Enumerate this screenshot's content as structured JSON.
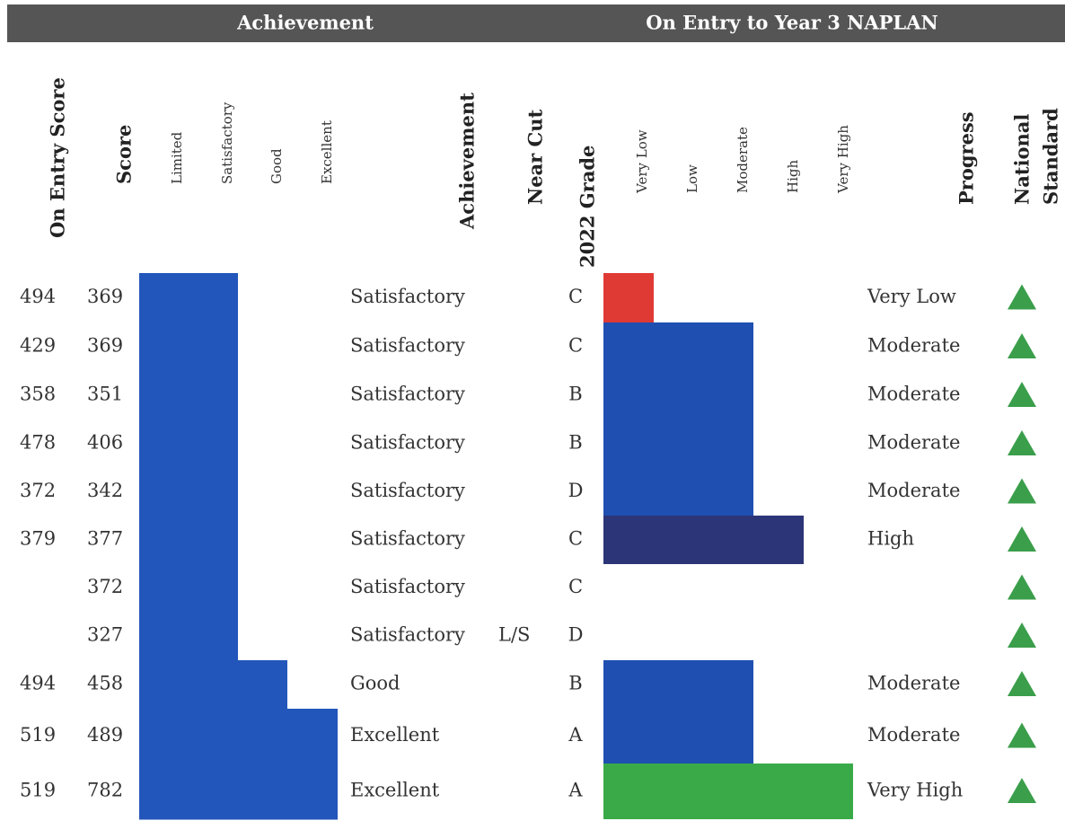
{
  "header": {
    "achievement": "Achievement",
    "naplan": "On Entry to Year 3 NAPLAN"
  },
  "columns": {
    "entry_score": "On Entry Score",
    "score": "Score",
    "achievement_levels": [
      "Limited",
      "Satisfactory",
      "Good",
      "Excellent"
    ],
    "achievement": "Achievement",
    "near_cut": "Near Cut",
    "grade": "2022 Grade",
    "progress_levels": [
      "Very Low",
      "Low",
      "Moderate",
      "High",
      "Very High"
    ],
    "progress": "Progress",
    "national_standard": {
      "line1": "National",
      "line2": "Standard"
    }
  },
  "table": {
    "rows": [
      {
        "entry_score": "494",
        "score": "369",
        "achievement": "Satisfactory",
        "near_cut": null,
        "grade": "C",
        "progress": "Very Low"
      },
      {
        "entry_score": "429",
        "score": "369",
        "achievement": "Satisfactory",
        "near_cut": null,
        "grade": "C",
        "progress": "Moderate"
      },
      {
        "entry_score": "358",
        "score": "351",
        "achievement": "Satisfactory",
        "near_cut": null,
        "grade": "B",
        "progress": "Moderate"
      },
      {
        "entry_score": "478",
        "score": "406",
        "achievement": "Satisfactory",
        "near_cut": null,
        "grade": "B",
        "progress": "Moderate"
      },
      {
        "entry_score": "372",
        "score": "342",
        "achievement": "Satisfactory",
        "near_cut": null,
        "grade": "D",
        "progress": "Moderate"
      },
      {
        "entry_score": "379",
        "score": "377",
        "achievement": "Satisfactory",
        "near_cut": null,
        "grade": "C",
        "progress": "High"
      },
      {
        "entry_score": null,
        "score": "372",
        "achievement": "Satisfactory",
        "near_cut": null,
        "grade": "C",
        "progress": null
      },
      {
        "entry_score": null,
        "score": "327",
        "achievement": "Satisfactory",
        "near_cut": "L/S",
        "grade": "D",
        "progress": null
      },
      {
        "entry_score": "494",
        "score": "458",
        "achievement": "Good",
        "near_cut": null,
        "grade": "B",
        "progress": "Moderate"
      },
      {
        "entry_score": "519",
        "score": "489",
        "achievement": "Excellent",
        "near_cut": null,
        "grade": "A",
        "progress": "Moderate"
      },
      {
        "entry_score": "519",
        "score": "782",
        "achievement": "Excellent",
        "near_cut": null,
        "grade": "A",
        "progress": "Very High"
      }
    ]
  }
}
